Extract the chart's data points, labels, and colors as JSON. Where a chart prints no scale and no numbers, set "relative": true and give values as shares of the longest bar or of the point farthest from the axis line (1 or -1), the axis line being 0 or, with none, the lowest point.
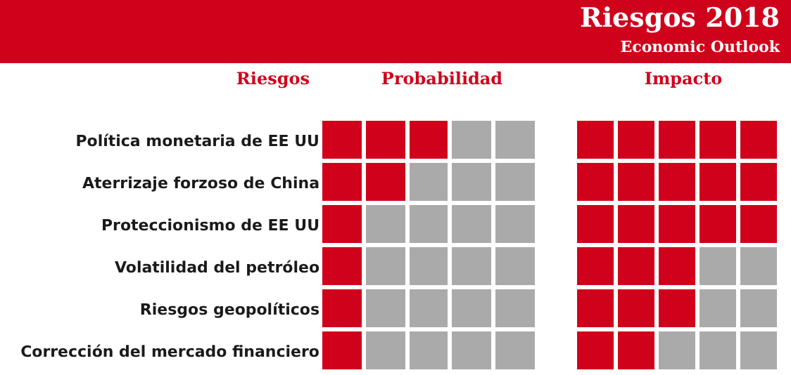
{
  "chart_data": [
    {
      "type": "bar",
      "orientation": "horizontal",
      "stacked": true,
      "relative": true,
      "xlabel": "Probabilidad",
      "ylabel": "Riesgos",
      "categories": [
        "Política monetaria de EE UU",
        "Aterrizaje forzoso de China",
        "Proteccionismo de EE UU",
        "Volatilidad del petróleo",
        "Riesgos geopolíticos",
        "Corrección del mercado financiero"
      ],
      "series": [
        {
          "colors": [
            "#d0021b",
            "#d0021b",
            "#d0021b",
            "#d0021b",
            "#d0021b",
            "#d0021b"
          ],
          "values": [
            0.2,
            0.2,
            0.2,
            0.2,
            0.2,
            0.2
          ]
        },
        {
          "colors": [
            "#d0021b",
            "#d0021b",
            "#aaaaaa",
            "#aaaaaa",
            "#aaaaaa",
            "#aaaaaa"
          ],
          "values": [
            0.2,
            0.2,
            0.2,
            0.2,
            0.2,
            0.2
          ]
        },
        {
          "colors": [
            "#d0021b",
            "#aaaaaa",
            "#aaaaaa",
            "#aaaaaa",
            "#aaaaaa",
            "#aaaaaa"
          ],
          "values": [
            0.2,
            0.2,
            0.2,
            0.2,
            0.2,
            0.2
          ]
        },
        {
          "colors": [
            "#aaaaaa",
            "#aaaaaa",
            "#aaaaaa",
            "#aaaaaa",
            "#aaaaaa",
            "#aaaaaa"
          ],
          "values": [
            0.2,
            0.2,
            0.2,
            0.2,
            0.2,
            0.2
          ]
        },
        {
          "colors": [
            "#aaaaaa",
            "#aaaaaa",
            "#aaaaaa",
            "#aaaaaa",
            "#aaaaaa",
            "#aaaaaa"
          ],
          "values": [
            0.2,
            0.2,
            0.2,
            0.2,
            0.2,
            0.2
          ]
        }
      ]
    },
    {
      "type": "bar",
      "orientation": "horizontal",
      "stacked": true,
      "relative": true,
      "title": "Riesgos 2018",
      "subtitle": "Economic Outlook",
      "xlabel": "Impacto",
      "categories": [
        null,
        null,
        null,
        null,
        null,
        null
      ],
      "series": [
        {
          "colors": [
            "#d0021b",
            "#d0021b",
            "#d0021b",
            "#d0021b",
            "#d0021b",
            "#d0021b"
          ],
          "values": [
            0.2,
            0.2,
            0.2,
            0.2,
            0.2,
            0.2
          ]
        },
        {
          "colors": [
            "#d0021b",
            "#d0021b",
            "#d0021b",
            "#d0021b",
            "#d0021b",
            "#d0021b"
          ],
          "values": [
            0.2,
            0.2,
            0.2,
            0.2,
            0.2,
            0.2
          ]
        },
        {
          "colors": [
            "#d0021b",
            "#d0021b",
            "#d0021b",
            "#d0021b",
            "#d0021b",
            "#aaaaaa"
          ],
          "values": [
            0.2,
            0.2,
            0.2,
            0.2,
            0.2,
            0.2
          ]
        },
        {
          "colors": [
            "#d0021b",
            "#d0021b",
            "#d0021b",
            "#aaaaaa",
            "#aaaaaa",
            "#aaaaaa"
          ],
          "values": [
            0.2,
            0.2,
            0.2,
            0.2,
            0.2,
            0.2
          ]
        },
        {
          "colors": [
            "#d0021b",
            "#d0021b",
            "#d0021b",
            "#aaaaaa",
            "#aaaaaa",
            "#aaaaaa"
          ],
          "values": [
            0.2,
            0.2,
            0.2,
            0.2,
            0.2,
            0.2
          ]
        }
      ]
    }
  ]
}
